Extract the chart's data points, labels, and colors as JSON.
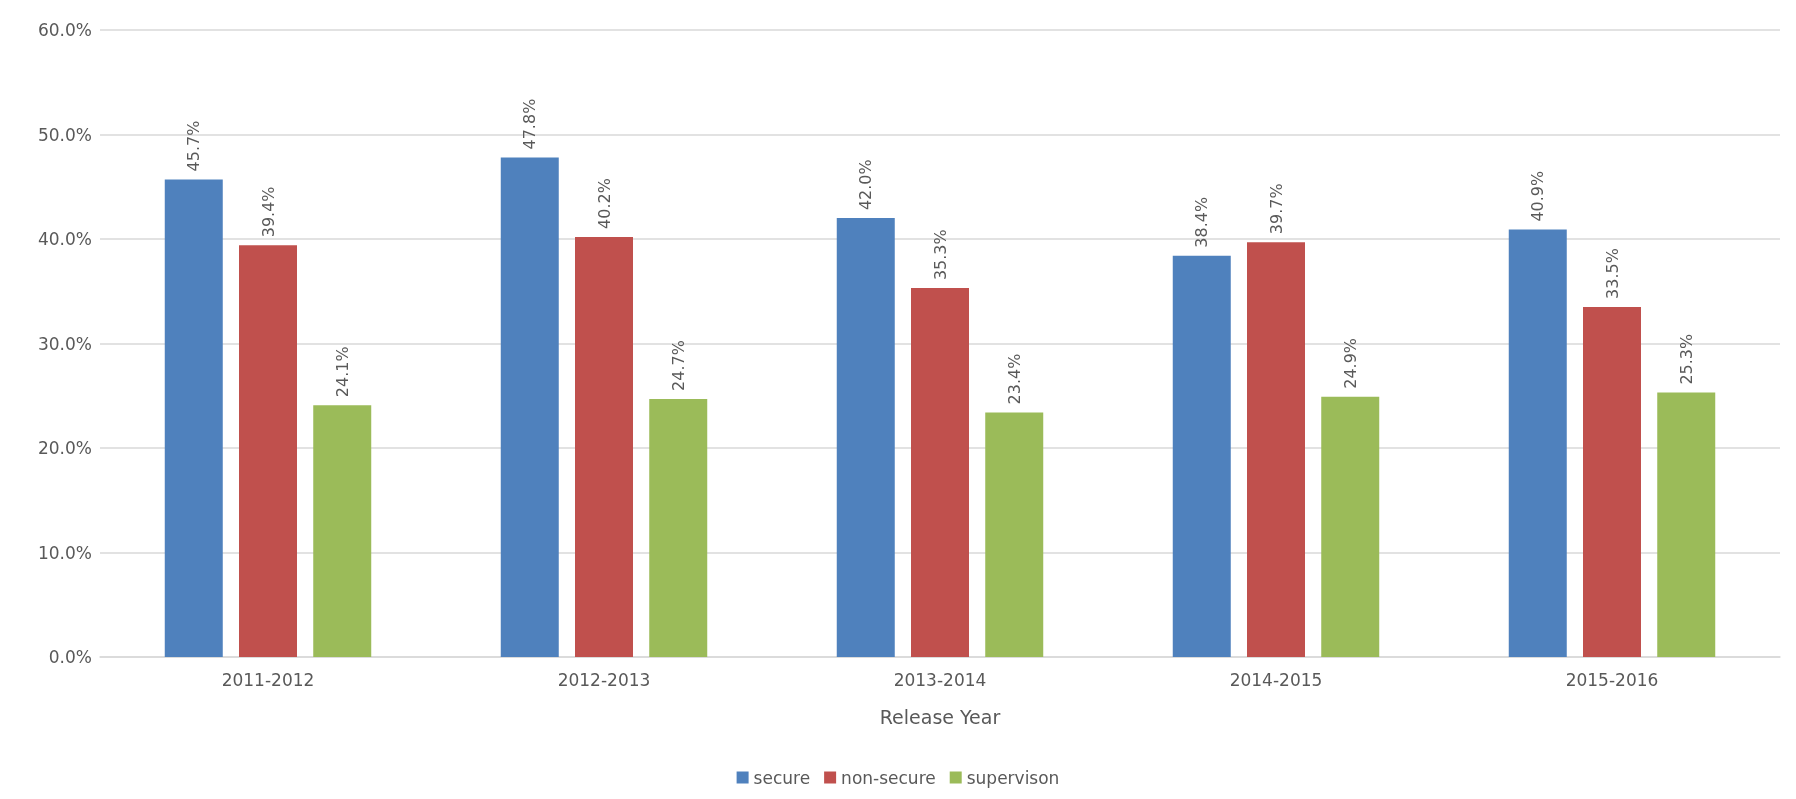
{
  "chart_data": {
    "type": "bar",
    "xlabel": "Release Year",
    "categories": [
      "2011-2012",
      "2012-2013",
      "2013-2014",
      "2014-2015",
      "2015-2016"
    ],
    "series": [
      {
        "name": "secure",
        "color": "#4f81bd",
        "values": [
          45.7,
          47.8,
          42.0,
          38.4,
          40.9
        ],
        "value_labels": [
          "45.7%",
          "47.8%",
          "42.0%",
          "38.4%",
          "40.9%"
        ]
      },
      {
        "name": "non-secure",
        "color": "#c0504d",
        "values": [
          39.4,
          40.2,
          35.3,
          39.7,
          33.5
        ],
        "value_labels": [
          "39.4%",
          "40.2%",
          "35.3%",
          "39.7%",
          "33.5%"
        ]
      },
      {
        "name": "supervison",
        "color": "#9bbb59",
        "values": [
          24.1,
          24.7,
          23.4,
          24.9,
          25.3
        ],
        "value_labels": [
          "24.1%",
          "24.7%",
          "23.4%",
          "24.9%",
          "25.3%"
        ]
      }
    ],
    "ylim": [
      0,
      60
    ],
    "yticks": [
      {
        "value": 0,
        "label": "0.0%"
      },
      {
        "value": 10,
        "label": "10.0%"
      },
      {
        "value": 20,
        "label": "20.0%"
      },
      {
        "value": 30,
        "label": "30.0%"
      },
      {
        "value": 40,
        "label": "40.0%"
      },
      {
        "value": 50,
        "label": "50.0%"
      },
      {
        "value": 60,
        "label": "60.0%"
      }
    ],
    "grid": "y",
    "legend": "bottom"
  }
}
